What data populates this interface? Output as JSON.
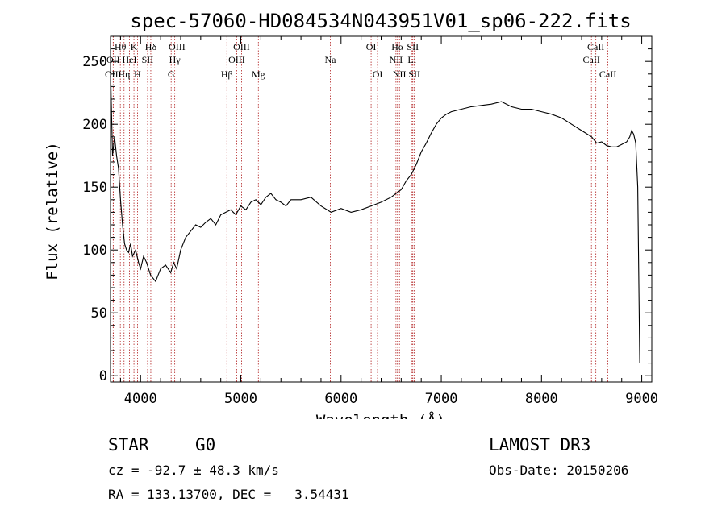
{
  "chart_data": {
    "type": "line",
    "title": "spec-57060-HD084534N043951V01_sp06-222.fits",
    "xlabel": "Wavelength (Å)",
    "ylabel": "Flux (relative)",
    "xlim": [
      3700,
      9100
    ],
    "ylim": [
      -5,
      270
    ],
    "xticks": [
      4000,
      5000,
      6000,
      7000,
      8000,
      9000
    ],
    "yticks": [
      0,
      50,
      100,
      150,
      200,
      250
    ],
    "grid": false,
    "series": [
      {
        "name": "flux",
        "x": [
          3700,
          3720,
          3740,
          3760,
          3780,
          3800,
          3820,
          3840,
          3860,
          3880,
          3900,
          3920,
          3950,
          3980,
          4000,
          4030,
          4060,
          4100,
          4150,
          4200,
          4250,
          4300,
          4330,
          4360,
          4400,
          4450,
          4500,
          4550,
          4600,
          4650,
          4700,
          4750,
          4800,
          4850,
          4900,
          4950,
          5000,
          5050,
          5100,
          5150,
          5200,
          5250,
          5300,
          5350,
          5400,
          5450,
          5500,
          5600,
          5700,
          5800,
          5900,
          6000,
          6100,
          6200,
          6300,
          6400,
          6500,
          6550,
          6600,
          6650,
          6700,
          6750,
          6800,
          6850,
          6900,
          6950,
          7000,
          7050,
          7100,
          7200,
          7300,
          7400,
          7500,
          7600,
          7700,
          7800,
          7900,
          8000,
          8100,
          8200,
          8300,
          8400,
          8500,
          8550,
          8600,
          8650,
          8700,
          8750,
          8800,
          8850,
          8880,
          8900,
          8920,
          8940,
          8960,
          8980
        ],
        "values": [
          245,
          175,
          190,
          175,
          165,
          140,
          120,
          105,
          100,
          98,
          105,
          95,
          100,
          90,
          85,
          95,
          90,
          80,
          75,
          85,
          88,
          82,
          90,
          85,
          100,
          110,
          115,
          120,
          118,
          122,
          125,
          120,
          128,
          130,
          132,
          128,
          135,
          132,
          138,
          140,
          136,
          142,
          145,
          140,
          138,
          135,
          140,
          140,
          142,
          135,
          130,
          133,
          130,
          132,
          135,
          138,
          142,
          145,
          148,
          155,
          160,
          168,
          178,
          185,
          193,
          200,
          205,
          208,
          210,
          212,
          214,
          215,
          216,
          218,
          214,
          212,
          212,
          210,
          208,
          205,
          200,
          195,
          190,
          185,
          186,
          183,
          182,
          182,
          184,
          186,
          190,
          195,
          192,
          185,
          150,
          10
        ]
      }
    ],
    "lines": [
      {
        "name": "Hθ",
        "x": 3798,
        "row": 1
      },
      {
        "name": "OII",
        "x": 3727,
        "row": 2
      },
      {
        "name": "OIII",
        "x": 3727,
        "row": 3
      },
      {
        "name": "Hη",
        "x": 3835,
        "row": 3
      },
      {
        "name": "K",
        "x": 3934,
        "row": 1
      },
      {
        "name": "H",
        "x": 3969,
        "row": 3
      },
      {
        "name": "HeI",
        "x": 3889,
        "row": 2
      },
      {
        "name": "SII",
        "x": 4070,
        "row": 2
      },
      {
        "name": "Hδ",
        "x": 4102,
        "row": 1
      },
      {
        "name": "OIII",
        "x": 4363,
        "row": 1
      },
      {
        "name": "Hγ",
        "x": 4341,
        "row": 2
      },
      {
        "name": "G",
        "x": 4305,
        "row": 3
      },
      {
        "name": "Hβ",
        "x": 4861,
        "row": 3
      },
      {
        "name": "OIII",
        "x": 4959,
        "row": 2
      },
      {
        "name": "OIII",
        "x": 5007,
        "row": 1
      },
      {
        "name": "Mg",
        "x": 5175,
        "row": 3
      },
      {
        "name": "Na",
        "x": 5893,
        "row": 2
      },
      {
        "name": "OI",
        "x": 6300,
        "row": 1
      },
      {
        "name": "OI",
        "x": 6364,
        "row": 3
      },
      {
        "name": "NII",
        "x": 6548,
        "row": 2
      },
      {
        "name": "NII",
        "x": 6583,
        "row": 3
      },
      {
        "name": "Hα",
        "x": 6563,
        "row": 1
      },
      {
        "name": "SII",
        "x": 6716,
        "row": 1
      },
      {
        "name": "Li",
        "x": 6708,
        "row": 2
      },
      {
        "name": "SII",
        "x": 6731,
        "row": 3
      },
      {
        "name": "CaII",
        "x": 8498,
        "row": 2
      },
      {
        "name": "CaII",
        "x": 8542,
        "row": 1
      },
      {
        "name": "CaII",
        "x": 8662,
        "row": 3
      }
    ]
  },
  "info": {
    "object_class": "STAR",
    "subclass": "G0",
    "survey": "LAMOST DR3",
    "cz": "cz = -92.7 ± 48.3 km/s",
    "obs_date": "Obs-Date: 20150206",
    "coords": "RA = 133.13700, DEC =   3.54431"
  },
  "colors": {
    "line_marker": "#b22222",
    "spectrum": "#000000"
  }
}
